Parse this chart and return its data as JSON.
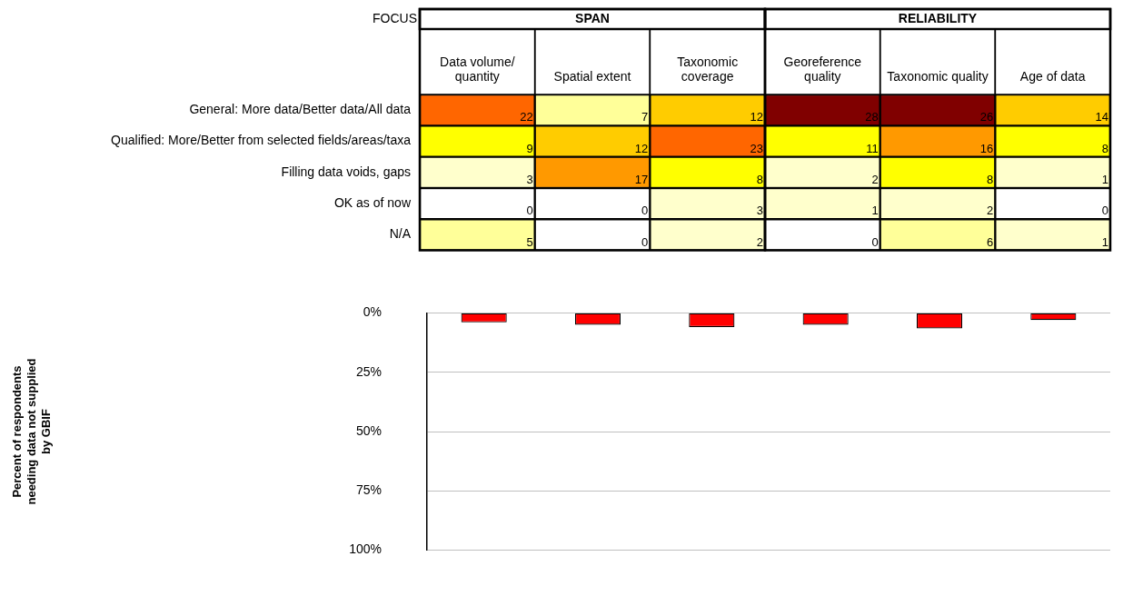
{
  "chart_data": [
    {
      "type": "heatmap",
      "ylabel": "FOCUS",
      "annotations": [
        "SPAN",
        "RELIABILITY"
      ],
      "categories": [
        "Data volume/ quantity",
        "Spatial extent",
        "Taxonomic coverage",
        "Georeference quality",
        "Taxonomic quality",
        "Age of data"
      ],
      "y_categories": [
        "General: More data/Better data/All data",
        "Qualified: More/Better from selected fields/areas/taxa",
        "Filling data voids, gaps",
        "OK as of now",
        "N/A"
      ],
      "cells": [
        [
          22,
          7,
          12,
          28,
          26,
          14
        ],
        [
          9,
          12,
          23,
          11,
          16,
          8
        ],
        [
          3,
          17,
          8,
          2,
          8,
          1
        ],
        [
          0,
          0,
          3,
          1,
          2,
          0
        ],
        [
          5,
          0,
          2,
          0,
          6,
          1
        ]
      ],
      "colors": [
        [
          "#ff6600",
          "#ffff99",
          "#ffcc00",
          "#800000",
          "#800000",
          "#ffcc00"
        ],
        [
          "#ffff00",
          "#ffcc00",
          "#ff6600",
          "#ffff00",
          "#ff9900",
          "#ffff00"
        ],
        [
          "#ffffcc",
          "#ff9900",
          "#ffff00",
          "#ffffcc",
          "#ffff00",
          "#ffffcc"
        ],
        [
          "#ffffff",
          "#ffffff",
          "#ffffcc",
          "#ffffcc",
          "#ffffcc",
          "#ffffff"
        ],
        [
          "#ffff99",
          "#ffffff",
          "#ffffcc",
          "#ffffff",
          "#ffff99",
          "#ffffcc"
        ]
      ],
      "data_labels": true
    },
    {
      "type": "bar",
      "categories": [
        null,
        null,
        null,
        null,
        null,
        null
      ],
      "values": [
        4,
        5,
        6,
        5,
        6.5,
        3
      ],
      "color": "#ff0000",
      "ylabel": "Percent of respondents needing data not supplied by GBIF",
      "ylim": [
        100,
        0
      ],
      "yticks": [
        {
          "value": 0,
          "label": "0%"
        },
        {
          "value": 25,
          "label": "25%"
        },
        {
          "value": 50,
          "label": "50%"
        },
        {
          "value": 75,
          "label": "75%"
        },
        {
          "value": 100,
          "label": "100%"
        }
      ],
      "grid": "y"
    }
  ]
}
